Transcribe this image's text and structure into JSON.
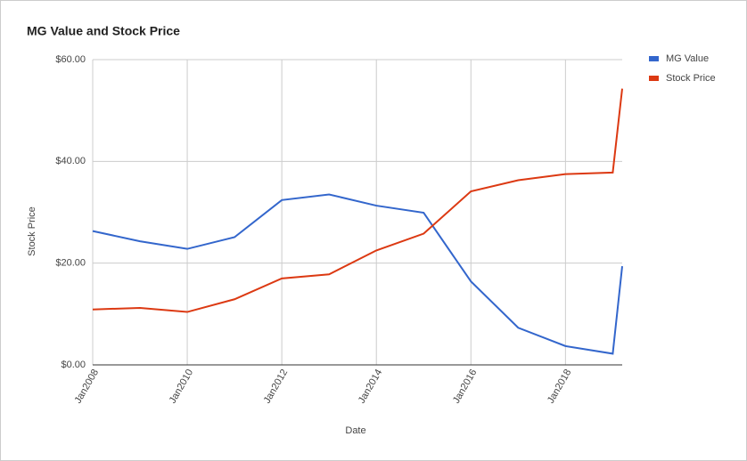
{
  "chart_data": {
    "type": "line",
    "title": "MG Value and Stock Price",
    "x_label": "Date",
    "y_label": "Stock Price",
    "x": [
      2008,
      2009,
      2010,
      2011,
      2012,
      2013,
      2014,
      2015,
      2016,
      2017,
      2018,
      2019,
      2019.2
    ],
    "series": [
      {
        "name": "MG Value",
        "color": "#3366cc",
        "values": [
          26.3,
          24.3,
          22.8,
          25.1,
          32.4,
          33.5,
          31.3,
          29.9,
          16.4,
          7.3,
          3.7,
          2.2,
          19.4
        ]
      },
      {
        "name": "Stock Price",
        "color": "#dc3912",
        "values": [
          10.9,
          11.2,
          10.4,
          12.9,
          17.0,
          17.8,
          22.5,
          25.8,
          34.1,
          36.3,
          37.5,
          37.8,
          54.3
        ]
      }
    ],
    "xlim": [
      2008,
      2019.2
    ],
    "xticks": [
      {
        "value": 2008,
        "label": "Jan2008"
      },
      {
        "value": 2010,
        "label": "Jan2010"
      },
      {
        "value": 2012,
        "label": "Jan2012"
      },
      {
        "value": 2014,
        "label": "Jan2014"
      },
      {
        "value": 2016,
        "label": "Jan2016"
      },
      {
        "value": 2018,
        "label": "Jan2018"
      }
    ],
    "ylim": [
      0,
      60
    ],
    "yticks": [
      {
        "value": 0,
        "label": "$0.00"
      },
      {
        "value": 20,
        "label": "$20.00"
      },
      {
        "value": 40,
        "label": "$40.00"
      },
      {
        "value": 60,
        "label": "$60.00"
      }
    ],
    "grid": true,
    "legend": "right"
  }
}
